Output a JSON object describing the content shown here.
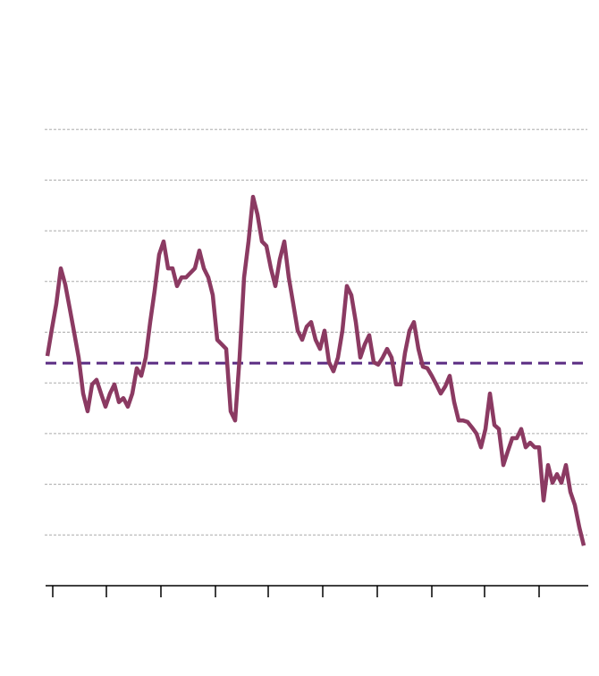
{
  "chart_data": {
    "type": "line",
    "values": [
      4.53,
      5.06,
      5.56,
      6.26,
      5.94,
      5.47,
      4.99,
      4.5,
      3.79,
      3.44,
      3.97,
      4.06,
      3.79,
      3.53,
      3.79,
      3.97,
      3.62,
      3.7,
      3.53,
      3.79,
      4.29,
      4.14,
      4.5,
      5.2,
      5.82,
      6.53,
      6.79,
      6.26,
      6.26,
      5.91,
      6.08,
      6.08,
      6.17,
      6.26,
      6.61,
      6.26,
      6.08,
      5.73,
      4.85,
      4.76,
      4.67,
      3.44,
      3.26,
      4.5,
      6.08,
      6.79,
      7.67,
      7.32,
      6.79,
      6.7,
      6.26,
      5.91,
      6.44,
      6.79,
      6.08,
      5.56,
      5.03,
      4.85,
      5.11,
      5.2,
      4.85,
      4.67,
      5.03,
      4.41,
      4.23,
      4.5,
      5.03,
      5.91,
      5.73,
      5.2,
      4.5,
      4.76,
      4.94,
      4.41,
      4.36,
      4.5,
      4.67,
      4.5,
      3.97,
      3.97,
      4.59,
      5.03,
      5.2,
      4.67,
      4.32,
      4.29,
      4.14,
      3.97,
      3.79,
      3.93,
      4.14,
      3.62,
      3.26,
      3.26,
      3.23,
      3.12,
      3.0,
      2.73,
      3.09,
      3.79,
      3.17,
      3.09,
      2.38,
      2.65,
      2.91,
      2.91,
      3.09,
      2.73,
      2.82,
      2.73,
      2.73,
      1.68,
      2.38,
      2.03,
      2.2,
      2.03,
      2.38,
      1.85,
      1.59,
      1.15,
      0.79
    ],
    "color": "#8b3a62",
    "reference_line": 4.39,
    "reference_color": "#5b2c83",
    "xlim": [
      0,
      120
    ],
    "xticks": [
      1.2,
      13.2,
      25.4,
      37.6,
      49.4,
      61.6,
      73.8,
      86,
      97.8,
      110
    ],
    "ylim": [
      0,
      10
    ],
    "yticks": [
      1,
      2,
      3,
      4,
      5,
      6,
      7,
      8,
      9
    ],
    "grid": true
  }
}
